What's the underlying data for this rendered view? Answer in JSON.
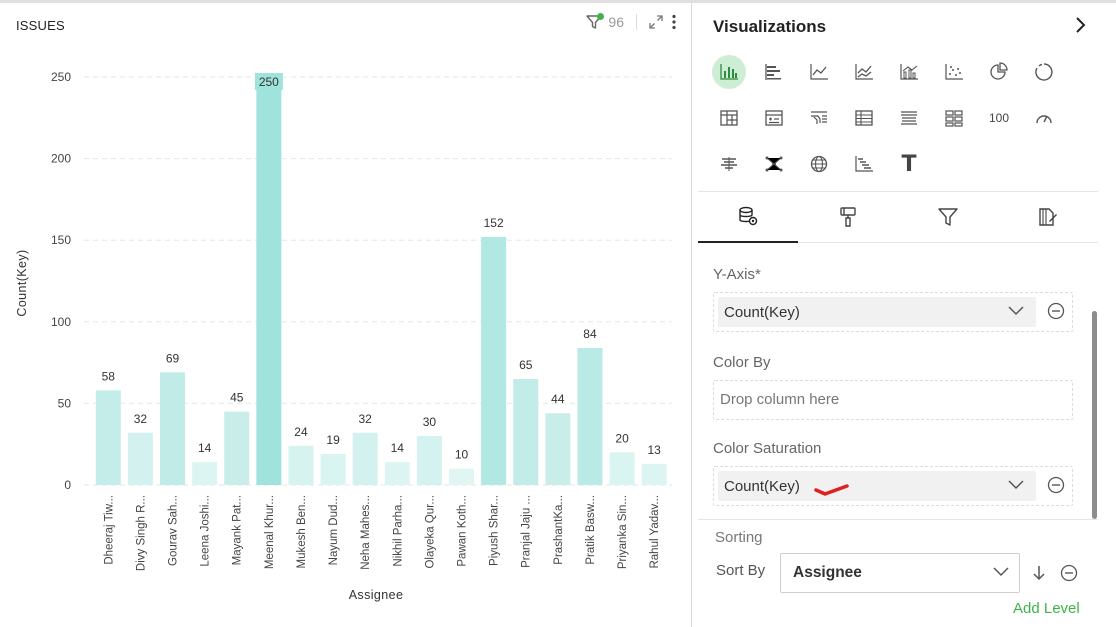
{
  "chart_panel": {
    "title": "ISSUES",
    "filter_count": "96"
  },
  "chart_data": {
    "type": "bar",
    "xlabel": "Assignee",
    "ylabel": "Count(Key)",
    "ylim": [
      0,
      250
    ],
    "yticks": [
      0,
      50,
      100,
      150,
      200,
      250
    ],
    "grid": true,
    "categories": [
      "Dheeraj Tiw...",
      "Divy Singh R...",
      "Gourav Sah...",
      "Leena Joshi...",
      "Mayank Pat...",
      "Meenal Khur...",
      "Mukesh Ben...",
      "Nayum Dud...",
      "Neha Mahes...",
      "Nikhil Parha...",
      "Olayeka Qur...",
      "Pawan Koth...",
      "Piyush Shar...",
      "Pranjal Jaju ...",
      "PrashantKa...",
      "Pratik Basw...",
      "Priyanka Sin...",
      "Rahul Yadav..."
    ],
    "values": [
      58,
      32,
      69,
      14,
      45,
      250,
      24,
      19,
      32,
      14,
      30,
      10,
      152,
      65,
      44,
      84,
      20,
      13
    ],
    "bar_colors": [
      "#c4ede9",
      "#d3f2ef",
      "#c0ebe7",
      "#ddf5f2",
      "#c9eeea",
      "#9fe3dc",
      "#d6f3f0",
      "#daf4f1",
      "#d3f2ef",
      "#ddf5f2",
      "#d4f2ef",
      "#e0f6f3",
      "#b2e8e2",
      "#c1ece7",
      "#c9eeea",
      "#b9eae5",
      "#d9f4f1",
      "#ddf5f2"
    ],
    "highlight_label_bg": "#9fe3dc"
  },
  "viz_panel": {
    "title": "Visualizations",
    "icons": [
      "bar-chart-icon",
      "horizontal-bar-icon",
      "line-chart-icon",
      "area-chart-icon",
      "combo-chart-icon",
      "scatter-chart-icon",
      "pie-chart-icon",
      "donut-chart-icon",
      "pivot-table-icon",
      "table-plus-icon",
      "filter-list-icon",
      "table-icon",
      "list-detail-icon",
      "grid-cards-icon",
      "kpi-number-icon",
      "gauge-icon",
      "funnel-bars-icon",
      "network-icon",
      "globe-icon",
      "gantt-icon",
      "text-icon"
    ],
    "kpi_label": "100",
    "text_label": "T",
    "tabs": [
      "data-tab",
      "format-tab",
      "filter-tab",
      "analytics-tab"
    ]
  },
  "fields": {
    "y_axis_label": "Y-Axis*",
    "y_axis_value": "Count(Key)",
    "color_by_label": "Color By",
    "color_by_placeholder": "Drop column here",
    "color_saturation_label": "Color Saturation",
    "color_saturation_value": "Count(Key)"
  },
  "sorting": {
    "label": "Sorting",
    "sort_by_label": "Sort By",
    "sort_by_value": "Assignee",
    "add_level": "Add Level"
  },
  "colors": {
    "accent_green": "#3cb44b",
    "annotation_red": "#e02020"
  }
}
